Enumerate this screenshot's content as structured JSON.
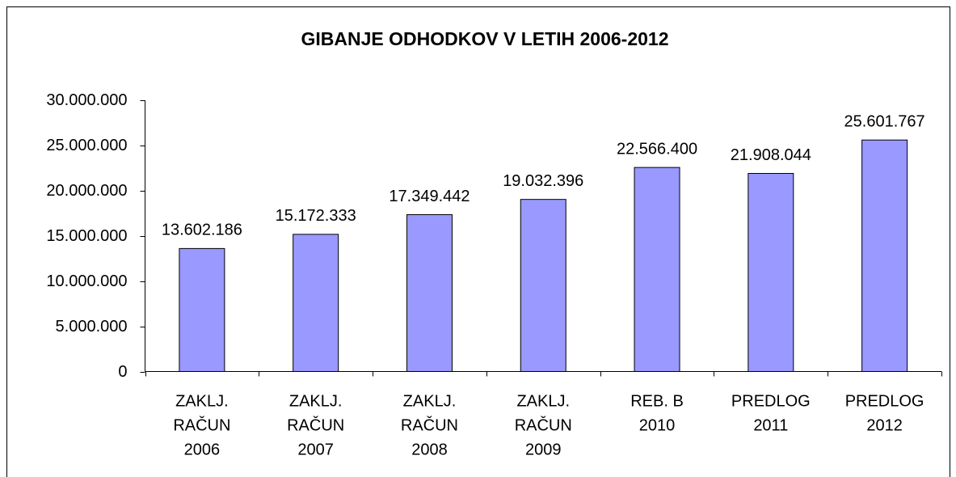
{
  "chart_data": {
    "type": "bar",
    "title": "GIBANJE ODHODKOV V LETIH 2006-2012",
    "categories": [
      "ZAKLJ.\nRAČUN\n2006",
      "ZAKLJ.\nRAČUN\n2007",
      "ZAKLJ.\nRAČUN\n2008",
      "ZAKLJ.\nRAČUN\n2009",
      "REB. B\n2010",
      "PREDLOG\n2011",
      "PREDLOG\n2012"
    ],
    "values": [
      13602186,
      15172333,
      17349442,
      19032396,
      22566400,
      21908044,
      25601767
    ],
    "value_labels": [
      "13.602.186",
      "15.172.333",
      "17.349.442",
      "19.032.396",
      "22.566.400",
      "21.908.044",
      "25.601.767"
    ],
    "color": "#9999ff",
    "ylim": [
      0,
      30000000
    ],
    "yticks": [
      0,
      {
        "value": 5000000,
        "label": "5.000.000"
      },
      {
        "value": 10000000,
        "label": "10.000.000"
      },
      {
        "value": 15000000,
        "label": "15.000.000"
      },
      {
        "value": 20000000,
        "label": "20.000.000"
      },
      {
        "value": 25000000,
        "label": "25.000.000"
      },
      {
        "value": 30000000,
        "label": "30.000.000"
      }
    ],
    "grid": false
  }
}
